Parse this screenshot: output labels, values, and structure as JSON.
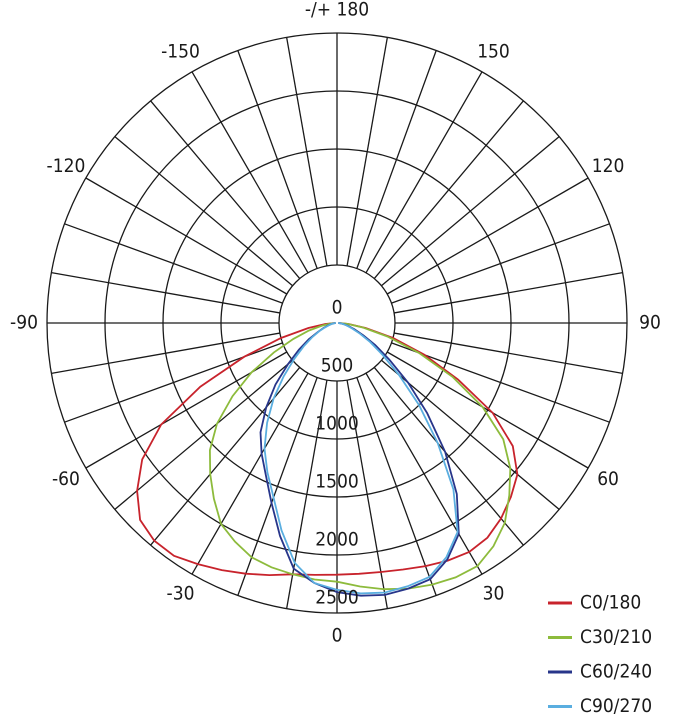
{
  "chart_data": {
    "type": "polar",
    "x": [
      -90,
      -85,
      -80,
      -75,
      -70,
      -65,
      -60,
      -55,
      -50,
      -45,
      -40,
      -35,
      -30,
      -25,
      -20,
      -15,
      -10,
      -5,
      0,
      5,
      10,
      15,
      20,
      25,
      30,
      35,
      40,
      45,
      50,
      55,
      60,
      65,
      70,
      75,
      80,
      85,
      90
    ],
    "series": [
      {
        "name": "C0/180",
        "color": "#c8232c",
        "values": [
          20,
          100,
          250,
          500,
          850,
          1300,
          1750,
          2050,
          2250,
          2400,
          2450,
          2450,
          2400,
          2350,
          2300,
          2250,
          2200,
          2180,
          2170,
          2170,
          2180,
          2200,
          2230,
          2260,
          2280,
          2260,
          2200,
          2120,
          2030,
          1850,
          1550,
          1150,
          800,
          500,
          250,
          100,
          20
        ]
      },
      {
        "name": "C30/210",
        "color": "#8dbb3c",
        "values": [
          15,
          60,
          130,
          250,
          400,
          600,
          850,
          1100,
          1350,
          1550,
          1700,
          1850,
          2000,
          2080,
          2150,
          2180,
          2200,
          2220,
          2230,
          2280,
          2330,
          2370,
          2400,
          2420,
          2420,
          2350,
          2250,
          2100,
          1950,
          1750,
          1450,
          1100,
          750,
          450,
          230,
          90,
          20
        ]
      },
      {
        "name": "C60/240",
        "color": "#27358a",
        "values": [
          10,
          25,
          50,
          80,
          120,
          180,
          280,
          400,
          550,
          750,
          950,
          1150,
          1300,
          1450,
          1650,
          1900,
          2150,
          2250,
          2320,
          2360,
          2380,
          2370,
          2350,
          2250,
          2100,
          1800,
          1450,
          1100,
          800,
          550,
          380,
          250,
          160,
          100,
          60,
          30,
          10
        ]
      },
      {
        "name": "C90/270",
        "color": "#5aaee0",
        "values": [
          10,
          25,
          45,
          70,
          110,
          170,
          250,
          350,
          480,
          650,
          850,
          1050,
          1250,
          1420,
          1600,
          1850,
          2100,
          2250,
          2300,
          2340,
          2360,
          2350,
          2330,
          2230,
          2080,
          1750,
          1350,
          1000,
          700,
          480,
          330,
          220,
          140,
          90,
          55,
          30,
          10
        ]
      }
    ],
    "rlim": [
      0,
      2500
    ],
    "rticks": [
      0,
      500,
      1000,
      1500,
      2000,
      2500
    ],
    "xticks": [
      0,
      30,
      60,
      90,
      120,
      150,
      {
        "value": 180,
        "label": "-/+ 180"
      },
      -150,
      -120,
      -90,
      -60,
      -30
    ],
    "angle_grid": [
      -170,
      -160,
      -150,
      -140,
      -130,
      -120,
      -110,
      -100,
      -90,
      -80,
      -70,
      -60,
      -50,
      -40,
      -30,
      -20,
      -10,
      0,
      10,
      20,
      30,
      40,
      50,
      60,
      70,
      80,
      90,
      100,
      110,
      120,
      130,
      140,
      150,
      160,
      170,
      180
    ],
    "legend": "lower right"
  }
}
